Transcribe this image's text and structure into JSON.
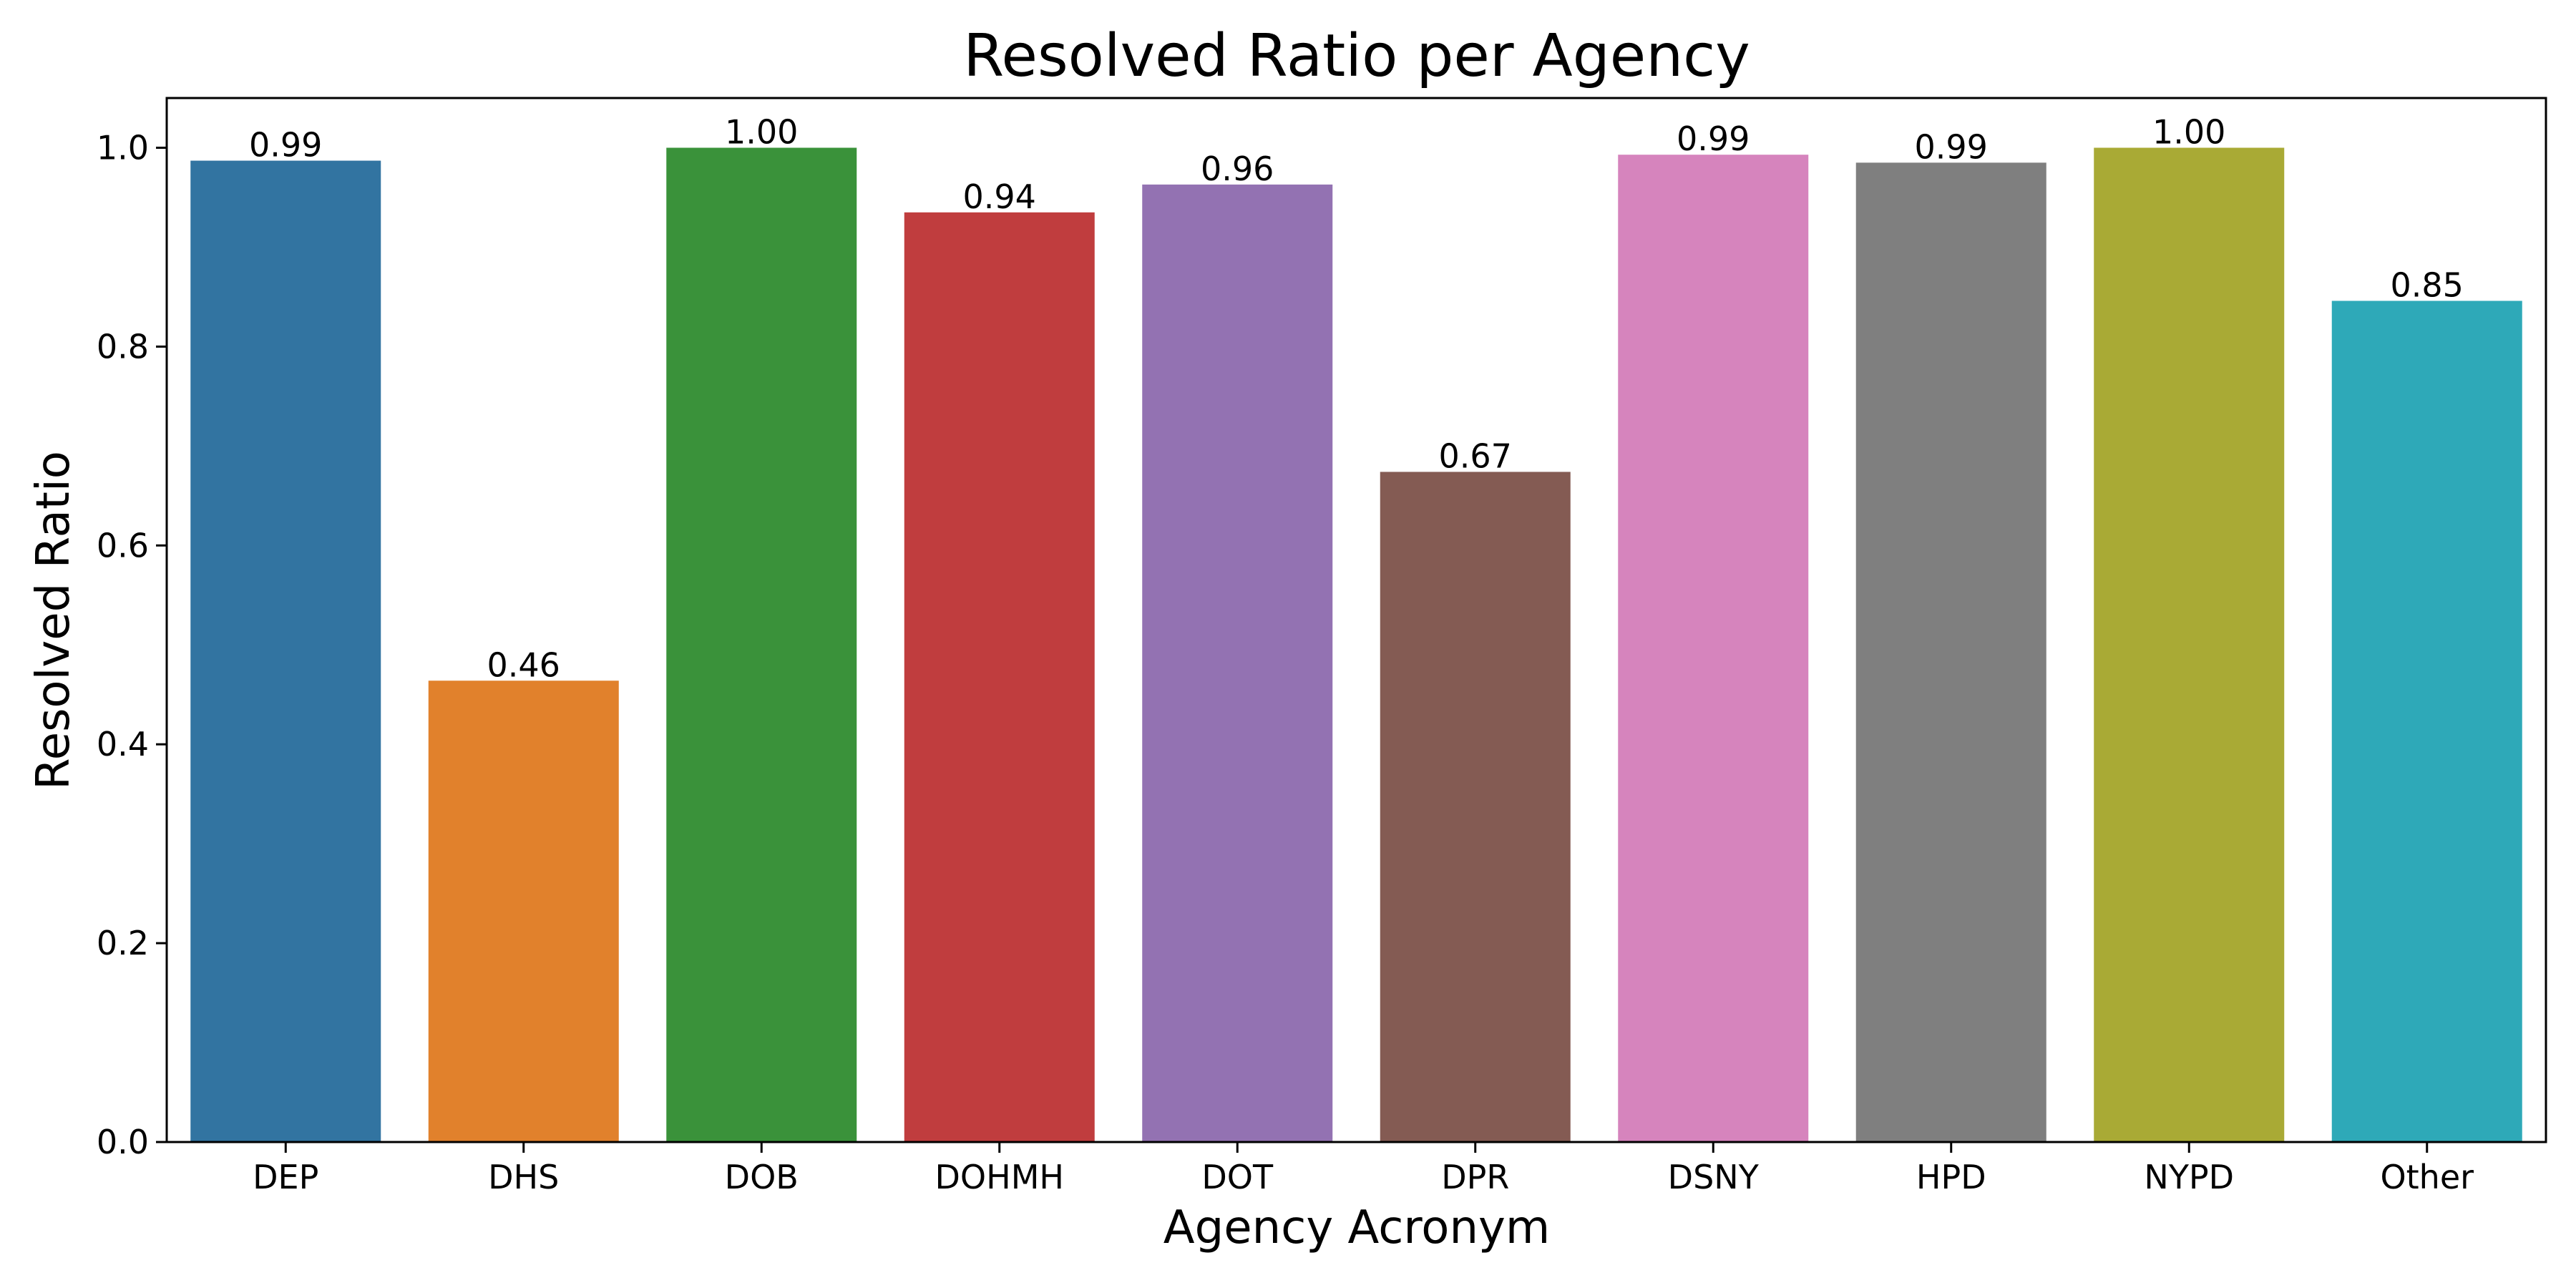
{
  "chart_data": {
    "type": "bar",
    "title": "Resolved Ratio per Agency",
    "xlabel": "Agency Acronym",
    "ylabel": "Resolved Ratio",
    "categories": [
      "DEP",
      "DHS",
      "DOB",
      "DOHMH",
      "DOT",
      "DPR",
      "DSNY",
      "HPD",
      "NYPD",
      "Other"
    ],
    "values": [
      0.987,
      0.464,
      1.0,
      0.935,
      0.963,
      0.674,
      0.993,
      0.985,
      1.0,
      0.846
    ],
    "value_labels": [
      "0.99",
      "0.46",
      "1.00",
      "0.94",
      "0.96",
      "0.67",
      "0.99",
      "0.99",
      "1.00",
      "0.85"
    ],
    "colors": [
      "#3274a1",
      "#e1812c",
      "#3a923a",
      "#c03d3e",
      "#9372b2",
      "#845b53",
      "#d684bd",
      "#7f7f7f",
      "#a9aa35",
      "#2ea9b8"
    ],
    "ylim": [
      0,
      1.05
    ],
    "yticks": [
      0.0,
      0.2,
      0.4,
      0.6,
      0.8,
      1.0
    ],
    "ytick_labels": [
      "0.0",
      "0.2",
      "0.4",
      "0.6",
      "0.8",
      "1.0"
    ],
    "grid": false,
    "legend": "none"
  }
}
